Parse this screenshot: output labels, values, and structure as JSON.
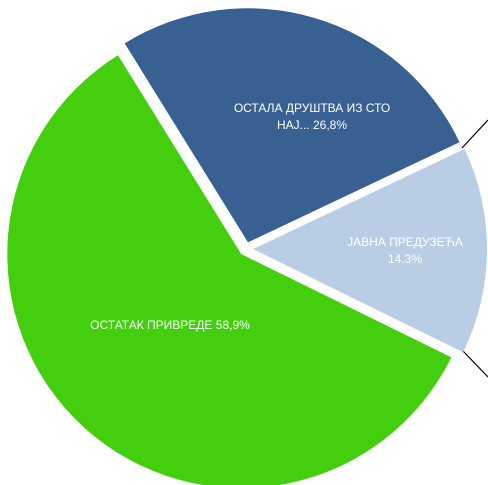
{
  "chart_data": {
    "type": "pie",
    "categories": [
      "ОСТАЛА ДРУШТВА ИЗ СТО НАЈ...",
      "ЈАВНА ПРЕДУЗЕЋА",
      "ОСТАТАК ПРИВРЕДЕ"
    ],
    "values": [
      26.8,
      14.3,
      58.9
    ],
    "value_labels": [
      "26,8%",
      "14.3%",
      "58,9%"
    ],
    "colors": [
      "#386092",
      "#b9cde5",
      "#43cf0e"
    ]
  }
}
